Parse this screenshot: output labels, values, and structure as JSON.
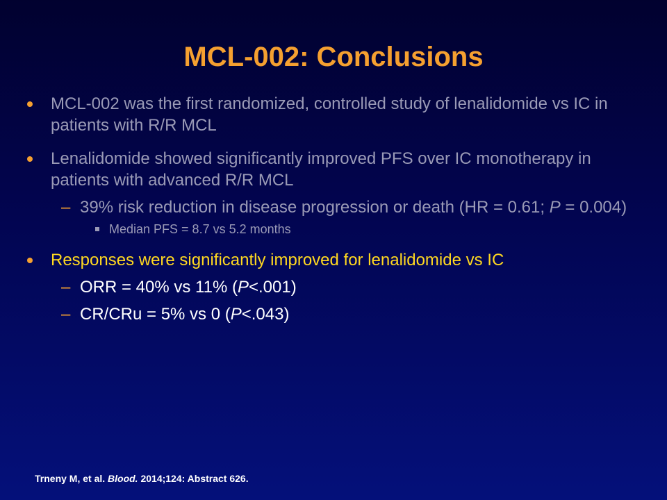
{
  "slide": {
    "title": "MCL-002: Conclusions",
    "b1": "MCL-002 was the first randomized, controlled study of lenalidomide vs IC in patients with R/R MCL",
    "b2": "Lenalidomide showed significantly improved PFS over IC monotherapy in patients with advanced R/R MCL",
    "b2_sub1_pre": "39% risk reduction in disease progression or death (HR = 0.61; ",
    "b2_sub1_p": "P",
    "b2_sub1_post": " = 0.004)",
    "b2_subsub1": "Median PFS = 8.7 vs 5.2 months",
    "b3": "Responses were significantly improved for lenalidomide vs IC",
    "b3_sub1_pre": "ORR  = 40% vs 11% (",
    "b3_sub1_p": "P",
    "b3_sub1_post": "<.001)",
    "b3_sub2_pre": "CR/CRu = 5% vs 0 (",
    "b3_sub2_p": "P",
    "b3_sub2_post": "<.043)",
    "dash": "–",
    "ref_author": "Trneny M, et al. ",
    "ref_journal": "Blood.",
    "ref_detail": " 2014;124: Abstract 626."
  },
  "colors": {
    "title": "#f5a030",
    "bullet_marker": "#f5a030",
    "body_text": "#9a9ab6",
    "highlight_text": "#ffd820",
    "emphasis_text": "#ffffff",
    "background_top": "#01012f",
    "background_bottom": "#04107a"
  },
  "icons": {
    "bullet": "orange-dot",
    "sub_bullet": "en-dash",
    "subsub_bullet": "small-square"
  }
}
